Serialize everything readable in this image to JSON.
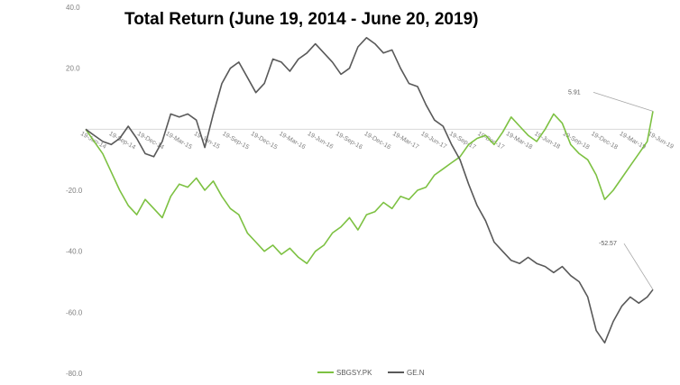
{
  "chart_data": {
    "type": "line",
    "title": "Total Return (June 19, 2014 - June 20, 2019)",
    "xlabel": "",
    "ylabel": "",
    "ylim": [
      -80,
      40
    ],
    "yticks": [
      "40.0",
      "20.0",
      "",
      "-20.0",
      "-40.0",
      "-60.0",
      "-80.0"
    ],
    "ytick_values": [
      40,
      20,
      0,
      -20,
      -40,
      -60,
      -80
    ],
    "xtick_labels": [
      "19-Jun-14",
      "19-Sep-14",
      "19-Dec-14",
      "19-Mar-15",
      "19-Jun-15",
      "19-Sep-15",
      "19-Dec-15",
      "19-Mar-16",
      "19-Jun-16",
      "19-Sep-16",
      "19-Dec-16",
      "19-Mar-17",
      "19-Jun-17",
      "19-Sep-17",
      "19-Dec-17",
      "19-Mar-18",
      "19-Jun-18",
      "19-Sep-18",
      "19-Dec-18",
      "19-Mar-19",
      "19-Jun-19"
    ],
    "grid": false,
    "legend": "bottom",
    "series": [
      {
        "name": "SBGSY.PK",
        "color": "#7dc142",
        "end_label": "5.91",
        "x": [
          0,
          0.3,
          0.6,
          0.9,
          1.2,
          1.5,
          1.8,
          2.1,
          2.4,
          2.7,
          3.0,
          3.3,
          3.6,
          3.9,
          4.2,
          4.5,
          4.8,
          5.1,
          5.4,
          5.7,
          6.0,
          6.3,
          6.6,
          6.9,
          7.2,
          7.5,
          7.8,
          8.1,
          8.4,
          8.7,
          9.0,
          9.3,
          9.6,
          9.9,
          10.2,
          10.5,
          10.8,
          11.1,
          11.4,
          11.7,
          12.0,
          12.3,
          12.6,
          12.9,
          13.2,
          13.5,
          13.8,
          14.1,
          14.4,
          14.7,
          15.0,
          15.3,
          15.6,
          15.9,
          16.2,
          16.5,
          16.8,
          17.1,
          17.4,
          17.7,
          18.0,
          18.3,
          18.6,
          18.9,
          19.2,
          19.5,
          19.8,
          20.0
        ],
        "values": [
          0,
          -4,
          -8,
          -14,
          -20,
          -25,
          -28,
          -23,
          -26,
          -29,
          -22,
          -18,
          -19,
          -16,
          -20,
          -17,
          -22,
          -26,
          -28,
          -34,
          -37,
          -40,
          -38,
          -41,
          -39,
          -42,
          -44,
          -40,
          -38,
          -34,
          -32,
          -29,
          -33,
          -28,
          -27,
          -24,
          -26,
          -22,
          -23,
          -20,
          -19,
          -15,
          -13,
          -11,
          -9,
          -5,
          -3,
          -2,
          -5,
          -1,
          4,
          1,
          -2,
          -4,
          0,
          5,
          2,
          -5,
          -8,
          -10,
          -15,
          -23,
          -20,
          -16,
          -12,
          -8,
          -4,
          5.91
        ]
      },
      {
        "name": "GE.N",
        "color": "#595959",
        "end_label": "-52.57",
        "x": [
          0,
          0.3,
          0.6,
          0.9,
          1.2,
          1.5,
          1.8,
          2.1,
          2.4,
          2.7,
          3.0,
          3.3,
          3.6,
          3.9,
          4.2,
          4.5,
          4.8,
          5.1,
          5.4,
          5.7,
          6.0,
          6.3,
          6.6,
          6.9,
          7.2,
          7.5,
          7.8,
          8.1,
          8.4,
          8.7,
          9.0,
          9.3,
          9.6,
          9.9,
          10.2,
          10.5,
          10.8,
          11.1,
          11.4,
          11.7,
          12.0,
          12.3,
          12.6,
          12.9,
          13.2,
          13.5,
          13.8,
          14.1,
          14.4,
          14.7,
          15.0,
          15.3,
          15.6,
          15.9,
          16.2,
          16.5,
          16.8,
          17.1,
          17.4,
          17.7,
          18.0,
          18.3,
          18.6,
          18.9,
          19.2,
          19.5,
          19.8,
          20.0
        ],
        "values": [
          0,
          -2,
          -4,
          -5,
          -3,
          1,
          -3,
          -8,
          -9,
          -4,
          5,
          4,
          5,
          3,
          -6,
          5,
          15,
          20,
          22,
          17,
          12,
          15,
          23,
          22,
          19,
          23,
          25,
          28,
          25,
          22,
          18,
          20,
          27,
          30,
          28,
          25,
          26,
          20,
          15,
          14,
          8,
          3,
          1,
          -5,
          -10,
          -18,
          -25,
          -30,
          -37,
          -40,
          -43,
          -44,
          -42,
          -44,
          -45,
          -47,
          -45,
          -48,
          -50,
          -55,
          -66,
          -70,
          -63,
          -58,
          -55,
          -57,
          -55,
          -52.57
        ]
      }
    ]
  }
}
